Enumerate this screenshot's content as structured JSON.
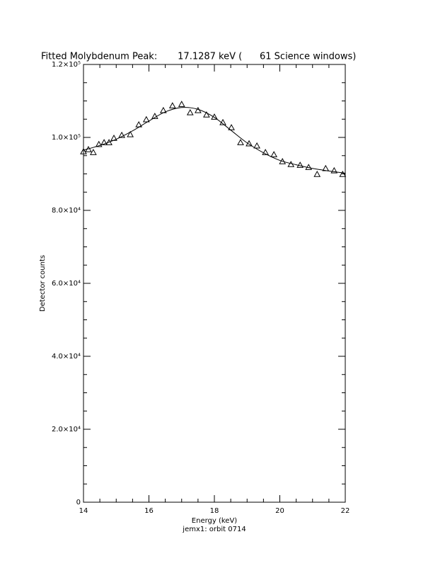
{
  "chart_data": {
    "type": "scatter",
    "title": "Fitted Molybdenum Peak:       17.1287 keV (      61 Science windows)",
    "x_label": "Energy (keV)",
    "subtitle": "jemx1: orbit 0714",
    "y_label": "Detector counts",
    "xlim": [
      14,
      22
    ],
    "xticks": [
      14,
      16,
      18,
      20,
      22
    ],
    "xminor": 4,
    "ylim": [
      0,
      120000
    ],
    "yticks": [
      0,
      {
        "value": 20000,
        "label": "2.0×10⁴"
      },
      {
        "value": 40000,
        "label": "4.0×10⁴"
      },
      {
        "value": 60000,
        "label": "6.0×10⁴"
      },
      {
        "value": 80000,
        "label": "8.0×10⁴"
      },
      {
        "value": 100000,
        "label": "1.0×10⁵"
      },
      {
        "value": 120000,
        "label": "1.2×10⁵"
      }
    ],
    "yminor": 4,
    "color": "#000000",
    "series": [
      {
        "type": "scatter",
        "marker": "triangle",
        "x": [
          14.0,
          14.15,
          14.3,
          14.47,
          14.63,
          14.78,
          14.93,
          15.17,
          15.43,
          15.69,
          15.92,
          16.18,
          16.44,
          16.72,
          17.0,
          17.26,
          17.5,
          17.76,
          18.0,
          18.26,
          18.52,
          18.8,
          19.06,
          19.3,
          19.56,
          19.82,
          20.08,
          20.34,
          20.62,
          20.88,
          21.14,
          21.4,
          21.66,
          21.92
        ],
        "values": [
          96100,
          96700,
          95900,
          98100,
          98600,
          98600,
          99800,
          100600,
          100800,
          103500,
          104900,
          105800,
          107400,
          108700,
          109100,
          106800,
          107400,
          106200,
          105600,
          104100,
          102700,
          98600,
          98300,
          97700,
          95900,
          95300,
          93400,
          92600,
          92400,
          91800,
          89900,
          91500,
          90900,
          89900
        ]
      },
      {
        "type": "line",
        "x": [
          14,
          14.5,
          15,
          15.5,
          16,
          16.5,
          17,
          17.5,
          18,
          18.5,
          19,
          19.5,
          20,
          20.5,
          21,
          21.5,
          22
        ],
        "values": [
          96500,
          97800,
          99500,
          101800,
          104500,
          107000,
          108200,
          107700,
          105500,
          102000,
          98500,
          95800,
          93700,
          92500,
          91500,
          90800,
          90200
        ]
      }
    ]
  }
}
